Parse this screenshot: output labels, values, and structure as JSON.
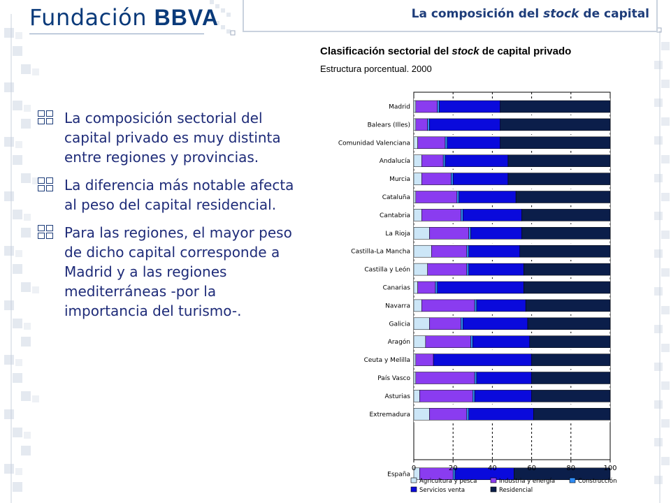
{
  "header": {
    "logo_text": "Fundación",
    "logo_brand": "BBVA",
    "title_pre": "La composición del ",
    "title_em": "stock",
    "title_post": " de capital"
  },
  "bullets": [
    {
      "text": "La composición sectorial del capital privado es muy distinta entre regiones y provincias."
    },
    {
      "text": "La diferencia más notable afecta al peso del capital residencial."
    },
    {
      "text": "Para las regiones, el mayor peso de dicho capital corresponde a Madrid y a las regiones mediterráneas -por la importancia del turismo-."
    }
  ],
  "icons": {
    "bullet": "grid-squares-icon"
  },
  "colors": {
    "header_text": "#1e3d7a",
    "bullet_text": "#1e2b78",
    "brand": "#0a3a7a"
  },
  "chart_data": {
    "type": "bar",
    "orientation": "horizontal",
    "stacked": true,
    "title_pre": "Clasificación sectorial del ",
    "title_em": "stock",
    "title_post": " de capital privado",
    "subtitle": "Estructura porcentual. 2000",
    "xlabel": "",
    "ylabel": "",
    "xlim": [
      0,
      100
    ],
    "xticks": [
      0,
      20,
      40,
      60,
      80,
      100
    ],
    "grid": "vertical dashed at 20, 40, 60, 80",
    "legend_position": "bottom",
    "categories": [
      "Madrid",
      "Balears (Illes)",
      "Comunidad Valenciana",
      "Andalucía",
      "Murcia",
      "Cataluña",
      "Cantabria",
      "La Rioja",
      "Castilla-La Mancha",
      "Castilla y León",
      "Canarias",
      "Navarra",
      "Galicia",
      "Aragón",
      "Ceuta y Melilla",
      "País Vasco",
      "Asturias",
      "Extremadura",
      "España"
    ],
    "series": [
      {
        "name": "Agricultura y pesca",
        "color": "#cce6f7",
        "values": [
          1,
          1,
          2,
          4,
          4,
          1,
          4,
          8,
          9,
          7,
          2,
          4,
          8,
          6,
          1,
          1,
          3,
          8,
          3
        ]
      },
      {
        "name": "Industria y energía",
        "color": "#8a3cf0",
        "values": [
          11,
          6,
          14,
          11,
          15,
          21,
          20,
          20,
          18,
          20,
          9,
          27,
          16,
          23,
          9,
          30,
          27,
          19,
          17
        ]
      },
      {
        "name": "Construcción",
        "color": "#2f8cf5",
        "values": [
          1,
          1,
          1,
          1,
          1,
          1,
          1,
          1,
          1,
          1,
          1,
          1,
          1,
          1,
          0,
          1,
          1,
          1,
          1
        ]
      },
      {
        "name": "Servicios venta",
        "color": "#0a0adc",
        "values": [
          31,
          36,
          27,
          32,
          28,
          29,
          30,
          26,
          26,
          28,
          44,
          25,
          33,
          29,
          50,
          28,
          29,
          33,
          30
        ]
      },
      {
        "name": "Residencial",
        "color": "#0b1e4a",
        "values": [
          56,
          56,
          56,
          52,
          52,
          48,
          45,
          45,
          46,
          44,
          44,
          43,
          42,
          41,
          40,
          40,
          40,
          39,
          49
        ]
      }
    ]
  }
}
